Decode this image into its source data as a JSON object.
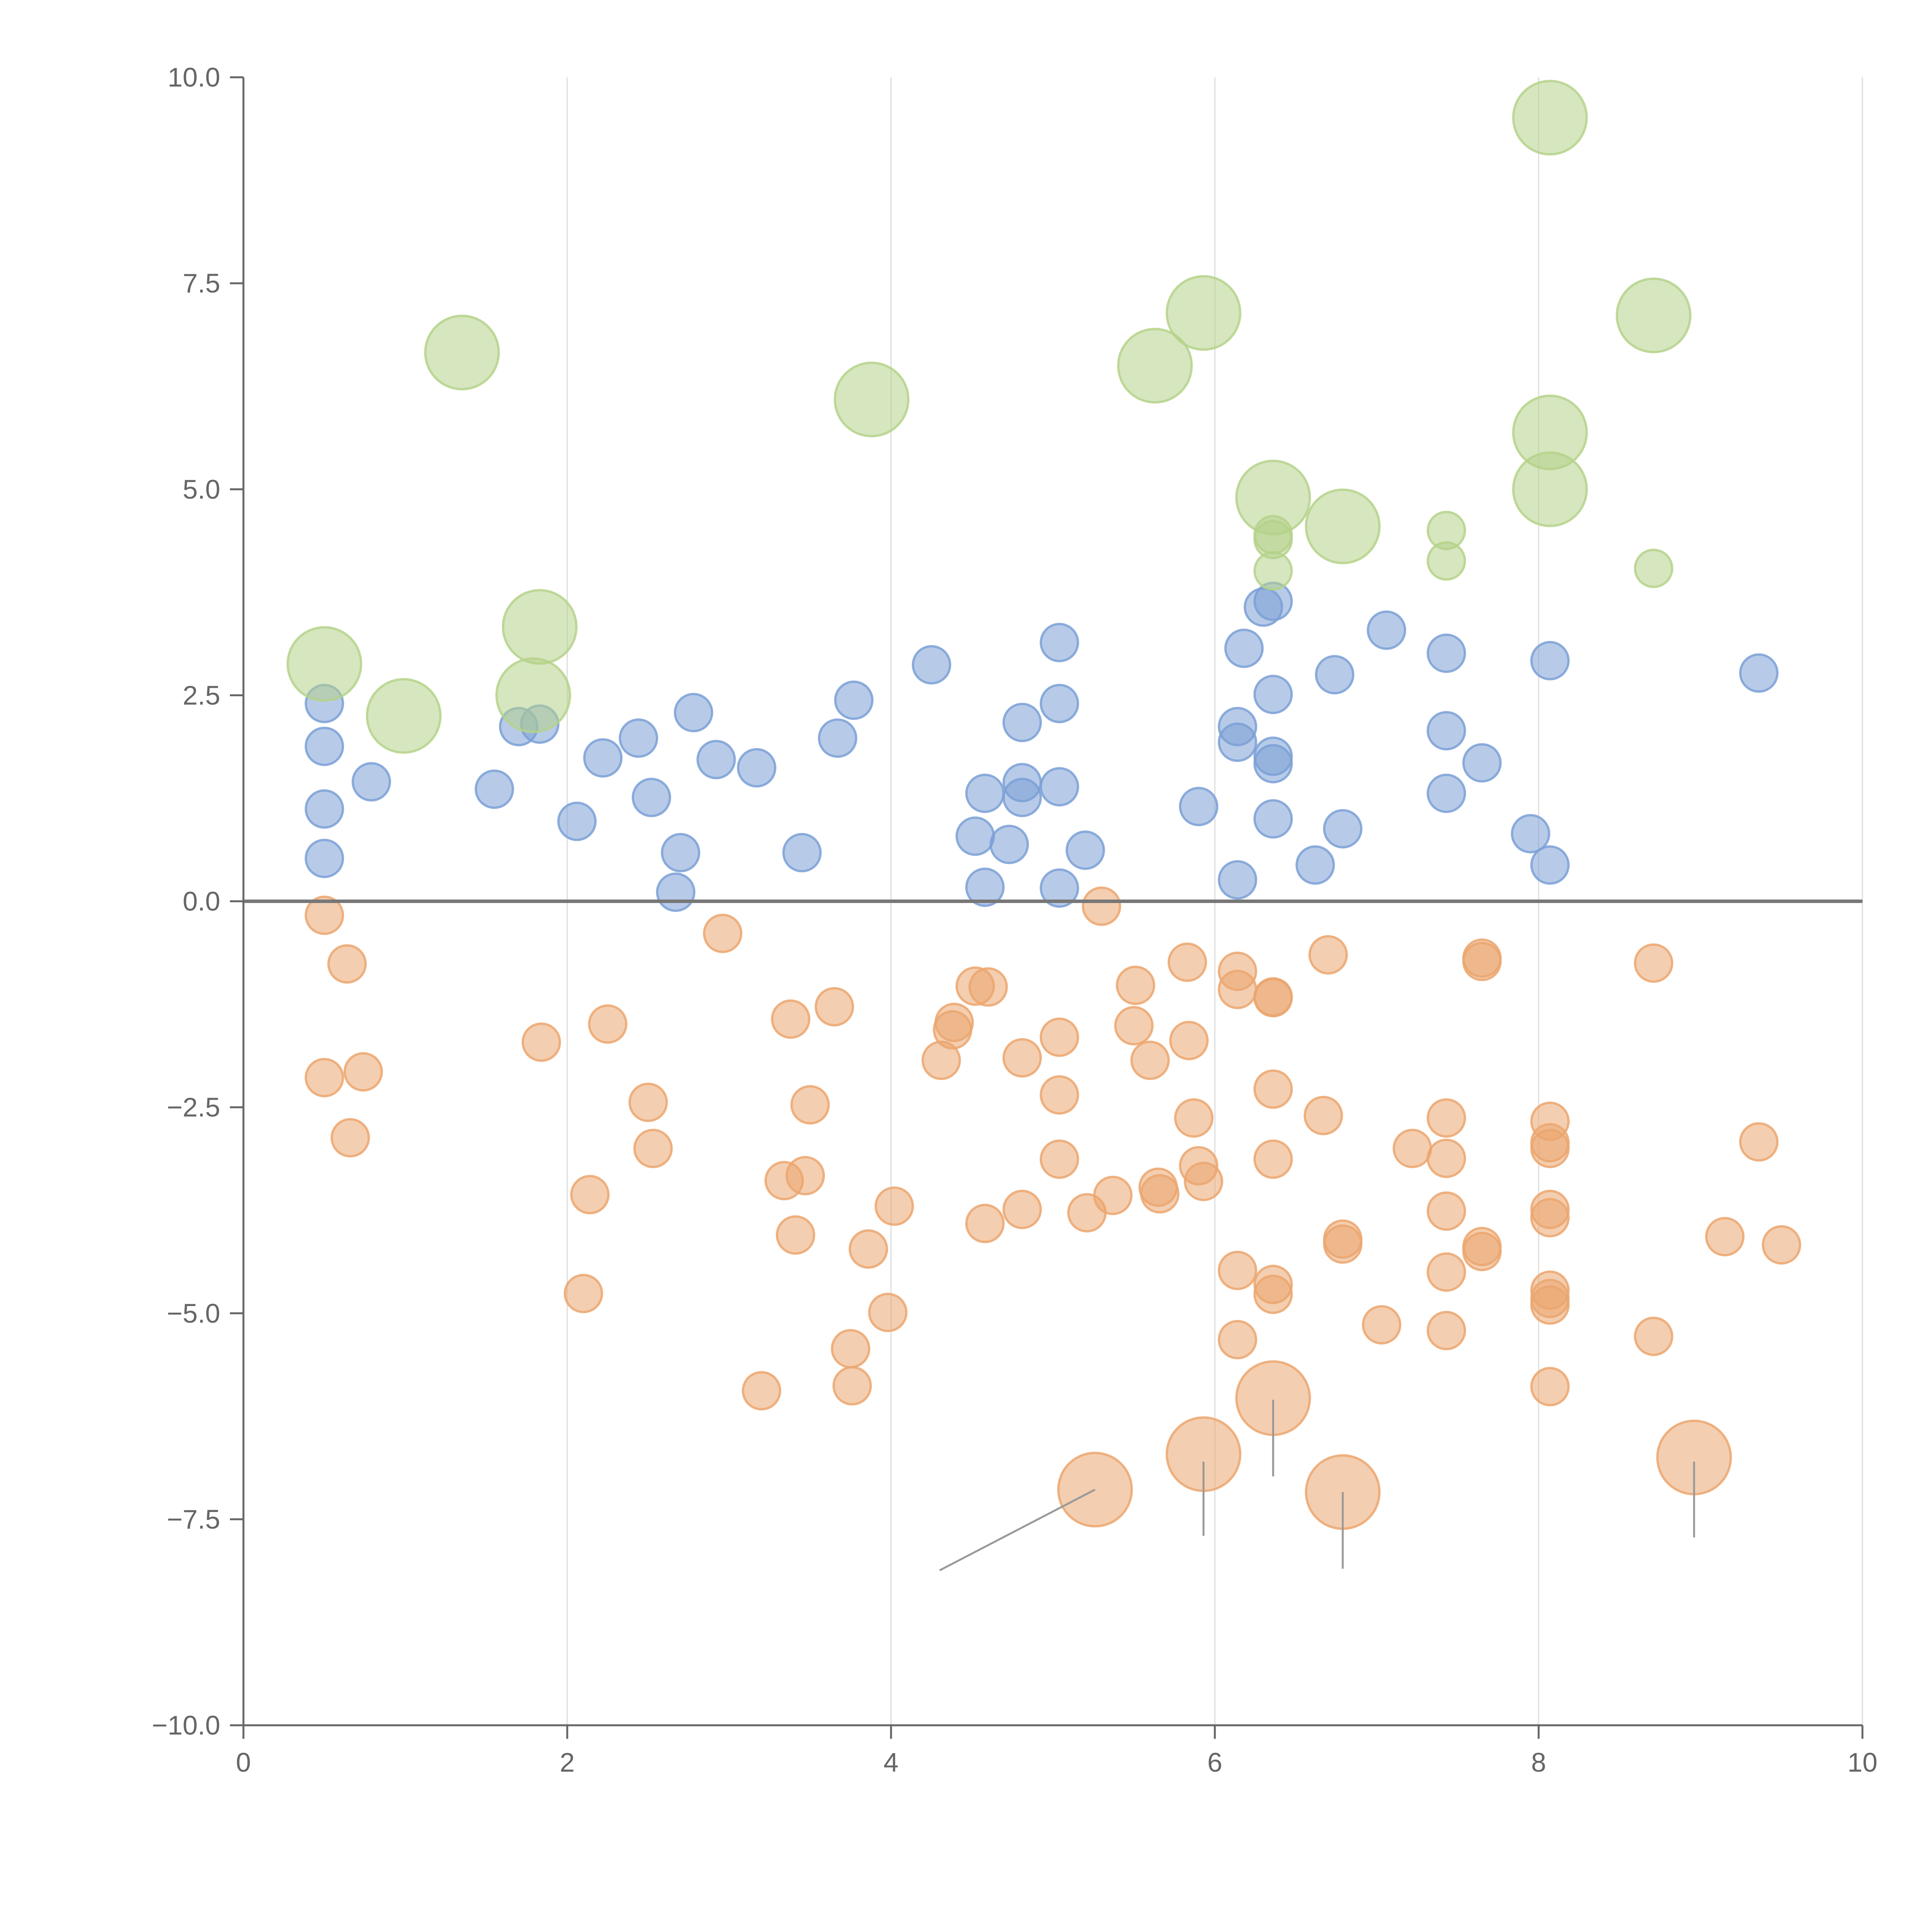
{
  "chart_data": {
    "type": "scatter",
    "title": "",
    "xlabel": "",
    "ylabel": "",
    "xlim": [
      0,
      10
    ],
    "ylim": [
      -10,
      10
    ],
    "grid": "vertical",
    "x_ticks": [
      0,
      2,
      4,
      6,
      8,
      10
    ],
    "y_ticks": [
      -10,
      -7.5,
      -5,
      -2.5,
      0,
      2.5,
      5,
      7.5,
      10
    ],
    "x_tick_labels": [
      "0",
      "2",
      "4",
      "6",
      "8",
      "10"
    ],
    "y_tick_labels": [
      "−10.0",
      "−7.5",
      "−5.0",
      "−2.5",
      "0.0",
      "2.5",
      "5.0",
      "7.5",
      "10.0"
    ],
    "reference_line_y": 0,
    "series": [
      {
        "name": "blue",
        "color": "#7ba0d6",
        "size": 1,
        "points": [
          [
            0.5,
            2.4
          ],
          [
            0.5,
            1.88
          ],
          [
            0.5,
            1.12
          ],
          [
            0.5,
            0.52
          ],
          [
            0.79,
            1.45
          ],
          [
            1.55,
            1.36
          ],
          [
            1.7,
            2.12
          ],
          [
            1.83,
            2.15
          ],
          [
            2.06,
            0.97
          ],
          [
            2.22,
            1.74
          ],
          [
            2.44,
            1.98
          ],
          [
            2.52,
            1.26
          ],
          [
            2.67,
            0.11
          ],
          [
            2.7,
            0.59
          ],
          [
            2.78,
            2.29
          ],
          [
            2.92,
            1.72
          ],
          [
            3.17,
            1.62
          ],
          [
            3.45,
            0.59
          ],
          [
            3.67,
            1.98
          ],
          [
            3.77,
            2.44
          ],
          [
            4.25,
            2.87
          ],
          [
            4.52,
            0.79
          ],
          [
            4.58,
            1.31
          ],
          [
            4.58,
            0.17
          ],
          [
            4.73,
            0.69
          ],
          [
            4.81,
            1.44
          ],
          [
            4.81,
            1.26
          ],
          [
            4.81,
            2.17
          ],
          [
            5.04,
            3.14
          ],
          [
            5.04,
            2.4
          ],
          [
            5.04,
            1.39
          ],
          [
            5.04,
            0.16
          ],
          [
            5.2,
            0.62
          ],
          [
            5.9,
            1.15
          ],
          [
            6.14,
            0.26
          ],
          [
            6.14,
            2.12
          ],
          [
            6.14,
            1.93
          ],
          [
            6.18,
            3.07
          ],
          [
            6.3,
            3.57
          ],
          [
            6.36,
            3.64
          ],
          [
            6.36,
            2.51
          ],
          [
            6.36,
            1.76
          ],
          [
            6.36,
            1.67
          ],
          [
            6.36,
            1.0
          ],
          [
            6.62,
            0.44
          ],
          [
            6.74,
            2.75
          ],
          [
            6.79,
            0.88
          ],
          [
            7.06,
            3.29
          ],
          [
            7.43,
            3.01
          ],
          [
            7.43,
            2.07
          ],
          [
            7.43,
            1.31
          ],
          [
            7.65,
            1.68
          ],
          [
            7.95,
            0.82
          ],
          [
            8.07,
            2.92
          ],
          [
            8.07,
            0.44
          ],
          [
            9.36,
            2.77
          ]
        ]
      },
      {
        "name": "orange",
        "color": "#eba66f",
        "size": 1,
        "points": [
          [
            0.5,
            -0.17
          ],
          [
            0.5,
            -2.14
          ],
          [
            0.64,
            -0.76
          ],
          [
            0.66,
            -2.87
          ],
          [
            0.74,
            -2.07
          ],
          [
            1.84,
            -1.71
          ],
          [
            2.1,
            -4.76
          ],
          [
            2.14,
            -3.56
          ],
          [
            2.25,
            -1.49
          ],
          [
            2.5,
            -2.44
          ],
          [
            2.53,
            -3.0
          ],
          [
            2.96,
            -0.39
          ],
          [
            3.2,
            -5.94
          ],
          [
            3.34,
            -3.39
          ],
          [
            3.38,
            -1.43
          ],
          [
            3.41,
            -4.05
          ],
          [
            3.47,
            -3.33
          ],
          [
            3.5,
            -2.47
          ],
          [
            3.65,
            -1.28
          ],
          [
            3.75,
            -5.43
          ],
          [
            3.76,
            -5.88
          ],
          [
            3.86,
            -4.22
          ],
          [
            3.98,
            -4.99
          ],
          [
            4.02,
            -3.7
          ],
          [
            4.31,
            -1.93
          ],
          [
            4.38,
            -1.56
          ],
          [
            4.39,
            -1.47
          ],
          [
            4.52,
            -1.03
          ],
          [
            4.58,
            -3.91
          ],
          [
            4.6,
            -1.04
          ],
          [
            4.81,
            -1.9
          ],
          [
            4.81,
            -3.74
          ],
          [
            5.04,
            -1.65
          ],
          [
            5.04,
            -2.35
          ],
          [
            5.04,
            -3.13
          ],
          [
            5.21,
            -3.78
          ],
          [
            5.3,
            -0.06
          ],
          [
            5.37,
            -3.57
          ],
          [
            5.51,
            -1.02
          ],
          [
            5.5,
            -1.51
          ],
          [
            5.6,
            -1.93
          ],
          [
            5.65,
            -3.47
          ],
          [
            5.66,
            -3.55
          ],
          [
            5.83,
            -0.74
          ],
          [
            5.84,
            -1.69
          ],
          [
            5.87,
            -2.63
          ],
          [
            5.9,
            -3.21
          ],
          [
            5.93,
            -3.4
          ],
          [
            6.14,
            -0.85
          ],
          [
            6.14,
            -1.07
          ],
          [
            6.14,
            -4.48
          ],
          [
            6.14,
            -5.32
          ],
          [
            6.36,
            -1.17
          ],
          [
            6.36,
            -1.16
          ],
          [
            6.36,
            -2.28
          ],
          [
            6.36,
            -3.13
          ],
          [
            6.36,
            -4.65
          ],
          [
            6.36,
            -4.77
          ],
          [
            6.67,
            -2.6
          ],
          [
            6.7,
            -0.65
          ],
          [
            6.79,
            -4.1
          ],
          [
            6.79,
            -4.16
          ],
          [
            7.03,
            -5.14
          ],
          [
            7.22,
            -3.0
          ],
          [
            7.43,
            -2.63
          ],
          [
            7.43,
            -3.12
          ],
          [
            7.43,
            -3.76
          ],
          [
            7.43,
            -4.5
          ],
          [
            7.43,
            -5.21
          ],
          [
            7.65,
            -0.69
          ],
          [
            7.65,
            -0.73
          ],
          [
            7.65,
            -4.19
          ],
          [
            7.65,
            -4.25
          ],
          [
            8.07,
            -2.67
          ],
          [
            8.07,
            -2.93
          ],
          [
            8.07,
            -3.0
          ],
          [
            8.07,
            -3.74
          ],
          [
            8.07,
            -3.84
          ],
          [
            8.07,
            -4.72
          ],
          [
            8.07,
            -4.82
          ],
          [
            8.07,
            -4.9
          ],
          [
            8.07,
            -5.89
          ],
          [
            8.71,
            -0.75
          ],
          [
            8.71,
            -5.28
          ],
          [
            9.15,
            -4.07
          ],
          [
            9.36,
            -2.92
          ],
          [
            9.5,
            -4.17
          ]
        ]
      },
      {
        "name": "orange-large",
        "color": "#eba66f",
        "size": 2,
        "points": [
          [
            5.26,
            -7.14
          ],
          [
            5.93,
            -6.71
          ],
          [
            6.36,
            -6.03
          ],
          [
            6.79,
            -7.17
          ],
          [
            8.96,
            -6.75
          ]
        ]
      },
      {
        "name": "green",
        "color": "#b5d28a",
        "size": 1,
        "points": [
          [
            6.36,
            4.45
          ],
          [
            6.36,
            4.39
          ],
          [
            6.36,
            4.01
          ],
          [
            7.43,
            4.5
          ],
          [
            7.43,
            4.13
          ],
          [
            8.71,
            4.04
          ]
        ]
      },
      {
        "name": "green-large",
        "color": "#b5d28a",
        "size": 2,
        "points": [
          [
            0.5,
            2.88
          ],
          [
            0.99,
            2.25
          ],
          [
            1.35,
            6.66
          ],
          [
            1.79,
            2.5
          ],
          [
            1.83,
            3.33
          ],
          [
            3.88,
            6.09
          ],
          [
            5.63,
            6.5
          ],
          [
            5.93,
            7.14
          ],
          [
            6.36,
            4.9
          ],
          [
            6.79,
            4.55
          ],
          [
            8.07,
            9.51
          ],
          [
            8.07,
            5.69
          ],
          [
            8.07,
            5.0
          ],
          [
            8.71,
            7.11
          ]
        ]
      }
    ],
    "annotation_connectors": [
      [
        [
          5.26,
          -7.14
        ],
        [
          4.3,
          -8.12
        ]
      ],
      [
        [
          5.93,
          -6.8
        ],
        [
          5.93,
          -7.7
        ]
      ],
      [
        [
          6.36,
          -6.05
        ],
        [
          6.36,
          -6.98
        ]
      ],
      [
        [
          6.79,
          -7.17
        ],
        [
          6.79,
          -8.1
        ]
      ],
      [
        [
          8.96,
          -6.8
        ],
        [
          8.96,
          -7.72
        ]
      ]
    ]
  }
}
